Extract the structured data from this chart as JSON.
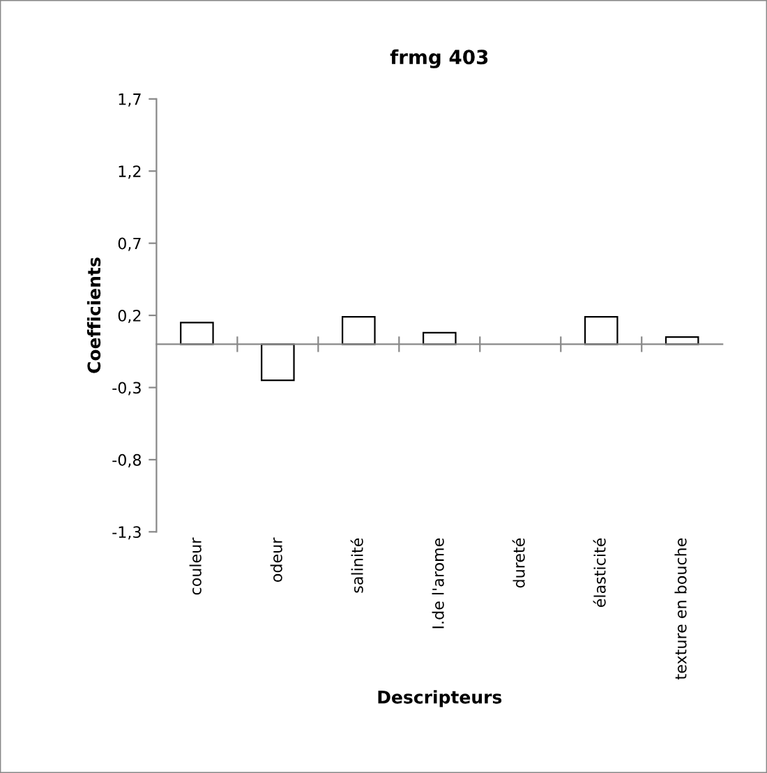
{
  "chart_data": {
    "type": "bar",
    "title": "frmg 403",
    "xlabel": "Descripteurs",
    "ylabel": "Coefficients",
    "categories": [
      "couleur",
      "odeur",
      "salinité",
      "I.de l'arome",
      "dureté",
      "élasticité",
      "texture en bouche"
    ],
    "values": [
      0.15,
      -0.25,
      0.19,
      0.08,
      null,
      0.19,
      0.05
    ],
    "color": "#ffffff",
    "ylim": [
      -1.3,
      1.7
    ],
    "yticks": [
      {
        "value": -1.3,
        "label": "-1,3"
      },
      {
        "value": -0.8,
        "label": "-0,8"
      },
      {
        "value": -0.3,
        "label": "-0,3"
      },
      {
        "value": 0.2,
        "label": "0,2"
      },
      {
        "value": 0.7,
        "label": "0,7"
      },
      {
        "value": 1.2,
        "label": "1,2"
      },
      {
        "value": 1.7,
        "label": "1,7"
      }
    ],
    "grid": false,
    "legend": false
  }
}
